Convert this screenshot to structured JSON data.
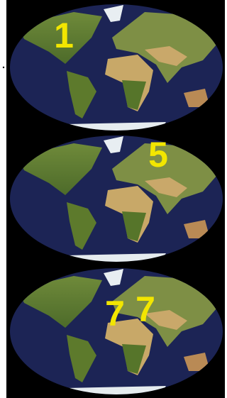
{
  "maps": [
    {
      "labels": [
        "1"
      ]
    },
    {
      "labels": [
        "5"
      ]
    },
    {
      "labels": [
        "7",
        "7"
      ]
    }
  ]
}
